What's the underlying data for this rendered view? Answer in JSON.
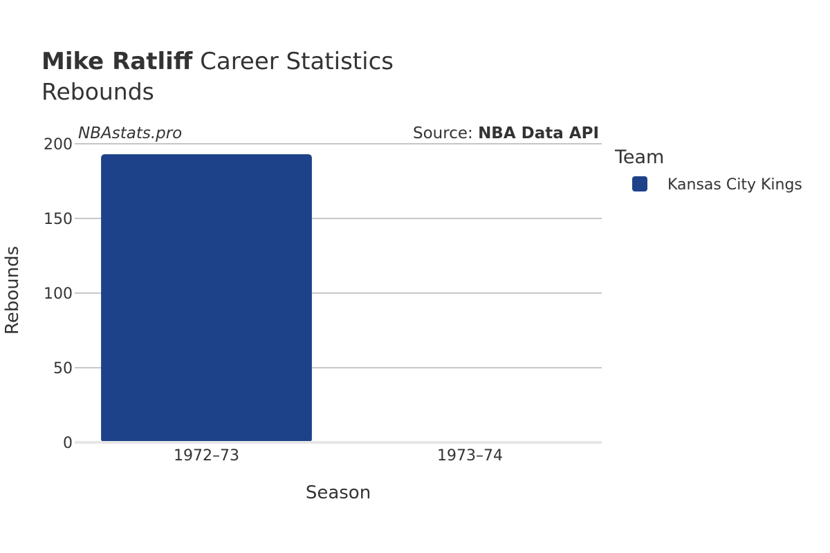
{
  "header": {
    "player_name": "Mike Ratliff",
    "title_rest": " Career Statistics",
    "subtitle": "Rebounds"
  },
  "watermark": "NBAstats.pro",
  "source": {
    "prefix": "Source: ",
    "name": "NBA Data API"
  },
  "legend": {
    "title": "Team",
    "items": [
      {
        "label": "Kansas City Kings",
        "color": "#1d4289"
      }
    ]
  },
  "chart_data": {
    "type": "bar",
    "categories": [
      "1972–73",
      "1973–74"
    ],
    "series": [
      {
        "name": "Kansas City Kings",
        "color": "#1d4289",
        "values": [
          193,
          0
        ]
      }
    ],
    "xlabel": "Season",
    "ylabel": "Rebounds",
    "ylim": [
      0,
      200
    ],
    "yticks": [
      0,
      50,
      100,
      150,
      200
    ],
    "grid": true,
    "legend_position": "right"
  }
}
